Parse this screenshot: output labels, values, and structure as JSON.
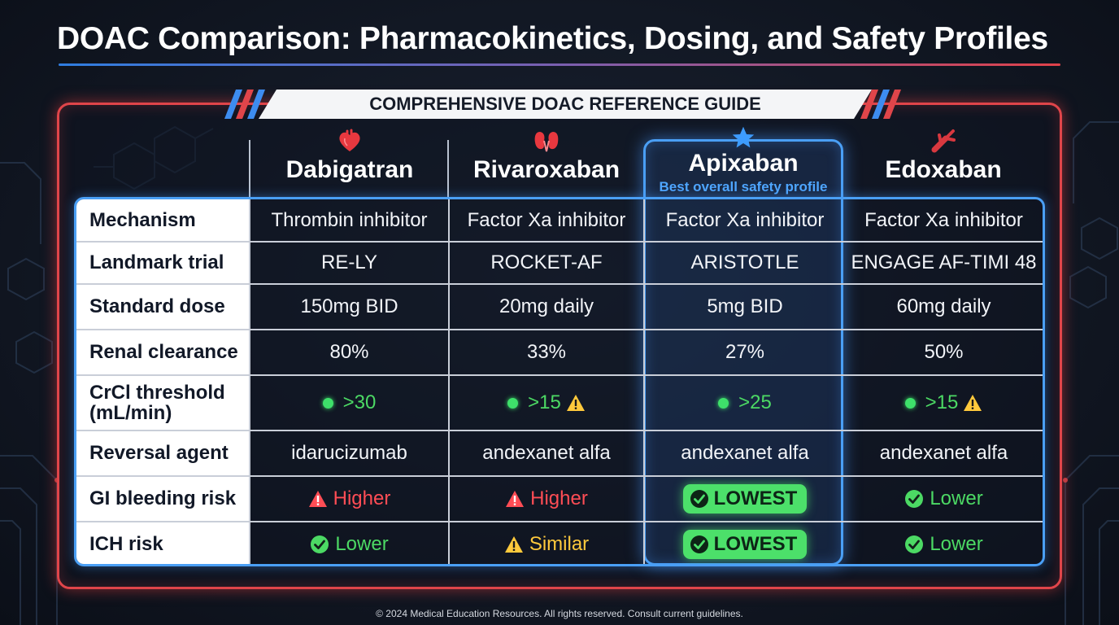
{
  "title": "DOAC Comparison: Pharmacokinetics, Dosing, and Safety Profiles",
  "banner": "COMPREHENSIVE DOAC REFERENCE GUIDE",
  "drugs": [
    {
      "name": "Dabigatran",
      "icon": "heart-icon"
    },
    {
      "name": "Rivaroxaban",
      "icon": "kidneys-icon"
    },
    {
      "name": "Apixaban",
      "icon": "star-icon",
      "subtitle": "Best overall safety profile"
    },
    {
      "name": "Edoxaban",
      "icon": "blood-vessel-icon"
    }
  ],
  "rows": [
    {
      "label": "Mechanism",
      "cells": [
        "Thrombin inhibitor",
        "Factor Xa inhibitor",
        "Factor Xa inhibitor",
        "Factor Xa inhibitor"
      ]
    },
    {
      "label": "Landmark trial",
      "cells": [
        "RE-LY",
        "ROCKET-AF",
        "ARISTOTLE",
        "ENGAGE AF-TIMI 48"
      ]
    },
    {
      "label": "Standard dose",
      "cells": [
        "150mg BID",
        "20mg daily",
        "5mg BID",
        "60mg daily"
      ]
    },
    {
      "label": "Renal clearance",
      "cells": [
        "80%",
        "33%",
        "27%",
        "50%"
      ]
    },
    {
      "label": "CrCl threshold (mL/min)",
      "cells": [
        ">30",
        ">15",
        ">25",
        ">15"
      ]
    },
    {
      "label": "Reversal agent",
      "cells": [
        "idarucizumab",
        "andexanet alfa",
        "andexanet alfa",
        "andexanet alfa"
      ]
    },
    {
      "label": "GI bleeding risk",
      "cells": [
        "Higher",
        "Higher",
        "LOWEST",
        "Lower"
      ]
    },
    {
      "label": "ICH risk",
      "cells": [
        "Lower",
        "Similar",
        "LOWEST",
        "Lower"
      ]
    }
  ],
  "colors": {
    "accent_blue": "#4a9ff5",
    "accent_red": "#e0454a",
    "good": "#4cd964",
    "bad": "#ff4d55",
    "caution": "#ffc93c"
  },
  "footer": "© 2024 Medical Education Resources. All rights reserved. Consult current guidelines."
}
